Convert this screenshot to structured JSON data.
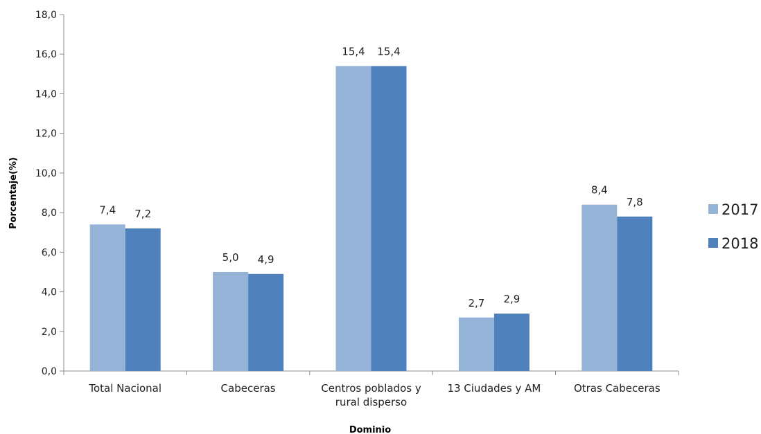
{
  "chart_data": {
    "type": "bar",
    "categories": [
      [
        "Total Nacional"
      ],
      [
        "Cabeceras"
      ],
      [
        "Centros poblados y",
        "rural disperso"
      ],
      [
        "13 Ciudades y AM"
      ],
      [
        "Otras Cabeceras"
      ]
    ],
    "series": [
      {
        "name": "2017",
        "color": "#95b3d7",
        "values": [
          7.4,
          5.0,
          15.4,
          2.7,
          8.4
        ],
        "labels": [
          "7,4",
          "5,0",
          "15,4",
          "2,7",
          "8,4"
        ]
      },
      {
        "name": "2018",
        "color": "#4f81bd",
        "values": [
          7.2,
          4.9,
          15.4,
          2.9,
          7.8
        ],
        "labels": [
          "7,2",
          "4,9",
          "15,4",
          "2,9",
          "7,8"
        ]
      }
    ],
    "xlabel": "Dominio",
    "ylabel": "Porcentaje(%)",
    "ylim": [
      0,
      18
    ],
    "yticks": [
      0,
      2,
      4,
      6,
      8,
      10,
      12,
      14,
      16,
      18
    ],
    "ytick_labels": [
      "0,0",
      "2,0",
      "4,0",
      "6,0",
      "8,0",
      "10,0",
      "12,0",
      "14,0",
      "16,0",
      "18,0"
    ],
    "grid": false,
    "legend_position": "right"
  }
}
